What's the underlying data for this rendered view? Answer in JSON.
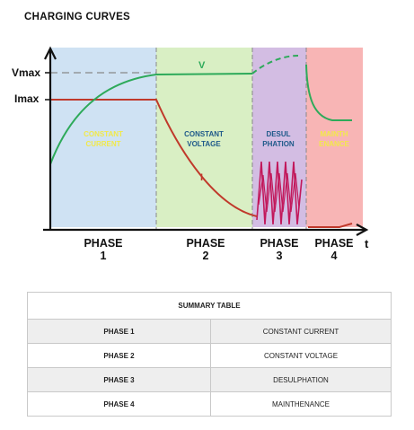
{
  "title": "CHARGING CURVES",
  "diagram": {
    "y_labels": {
      "vmax": "Vmax",
      "imax": "Imax"
    },
    "axis_t": "t",
    "curve_labels": {
      "voltage": "V",
      "current": "I"
    },
    "phases": [
      {
        "region": [
          "CONSTANT",
          "CURRENT"
        ],
        "number": "1",
        "color": "#cfe2f3",
        "text_color": "#f1e94a"
      },
      {
        "region": [
          "CONSTANT",
          "VOLTAGE"
        ],
        "number": "2",
        "color": "#d9efc4",
        "text_color": "#1f5a8a"
      },
      {
        "region": [
          "DESUL",
          "PHATION"
        ],
        "number": "3",
        "color": "#d3bde3",
        "text_color": "#1f5a8a"
      },
      {
        "region": [
          "MAINTH",
          "ENANCE"
        ],
        "number": "4",
        "color": "#f8b5b5",
        "text_color": "#f1e94a"
      }
    ],
    "phase_word": "PHASE",
    "colors": {
      "voltage": "#2eaa5a",
      "current": "#c0392b",
      "axis": "#111111"
    }
  },
  "summary_table": {
    "header": "SUMMARY TABLE",
    "rows": [
      {
        "phase": "PHASE 1",
        "description": "CONSTANT CURRENT"
      },
      {
        "phase": "PHASE 2",
        "description": "CONSTANT VOLTAGE"
      },
      {
        "phase": "PHASE 3",
        "description": "DESULPHATION"
      },
      {
        "phase": "PHASE 4",
        "description": "MAINTHENANCE"
      }
    ]
  }
}
